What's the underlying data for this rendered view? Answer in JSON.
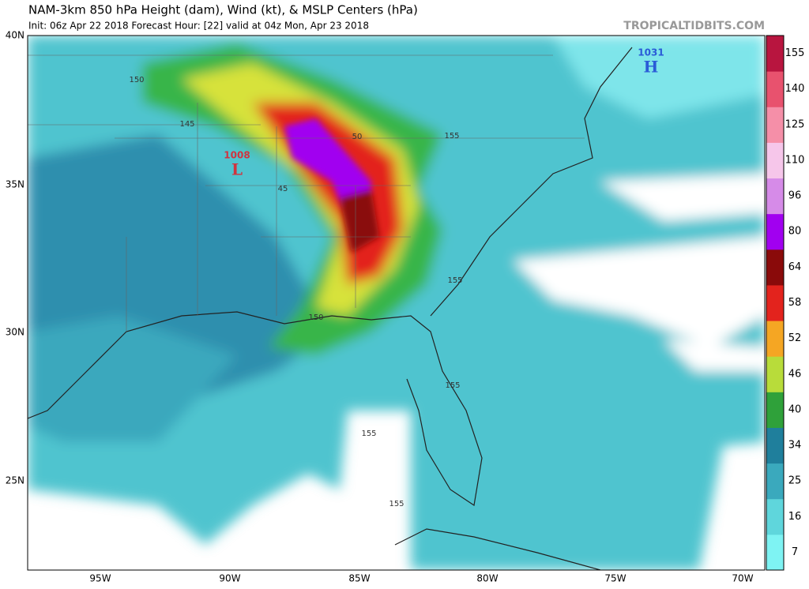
{
  "header": {
    "title": "NAM-3km 850 hPa Height (dam), Wind (kt), & MSLP Centers (hPa)",
    "subtitle": "Init: 06z Apr 22 2018   Forecast Hour: [22]   valid at 04z Mon, Apr 23 2018",
    "watermark": "TROPICALTIDBITS.COM"
  },
  "map": {
    "lat_labels": [
      "40N",
      "35N",
      "30N",
      "25N"
    ],
    "lon_labels": [
      "95W",
      "90W",
      "85W",
      "80W",
      "75W",
      "70W"
    ],
    "contour_labels": [
      "150",
      "145",
      "50",
      "155",
      "45",
      "150",
      "155",
      "155",
      "155",
      "155"
    ],
    "centers": [
      {
        "value": "1008",
        "symbol": "L",
        "color": "#d0343f"
      },
      {
        "value": "1031",
        "symbol": "H",
        "color": "#2a5bd7"
      }
    ]
  },
  "colorbar": {
    "ticks": [
      7,
      16,
      25,
      34,
      40,
      46,
      52,
      58,
      64,
      80,
      96,
      110,
      125,
      140,
      155
    ],
    "colors": [
      "#7ef3f3",
      "#5fd6dc",
      "#3aa9bd",
      "#1f7f9c",
      "#2fa13a",
      "#b8dc3a",
      "#f5a623",
      "#e3231d",
      "#8a0a0a",
      "#a100f0",
      "#d68be8",
      "#f6c6ea",
      "#f58fa8",
      "#e8526e",
      "#b8153f"
    ]
  }
}
